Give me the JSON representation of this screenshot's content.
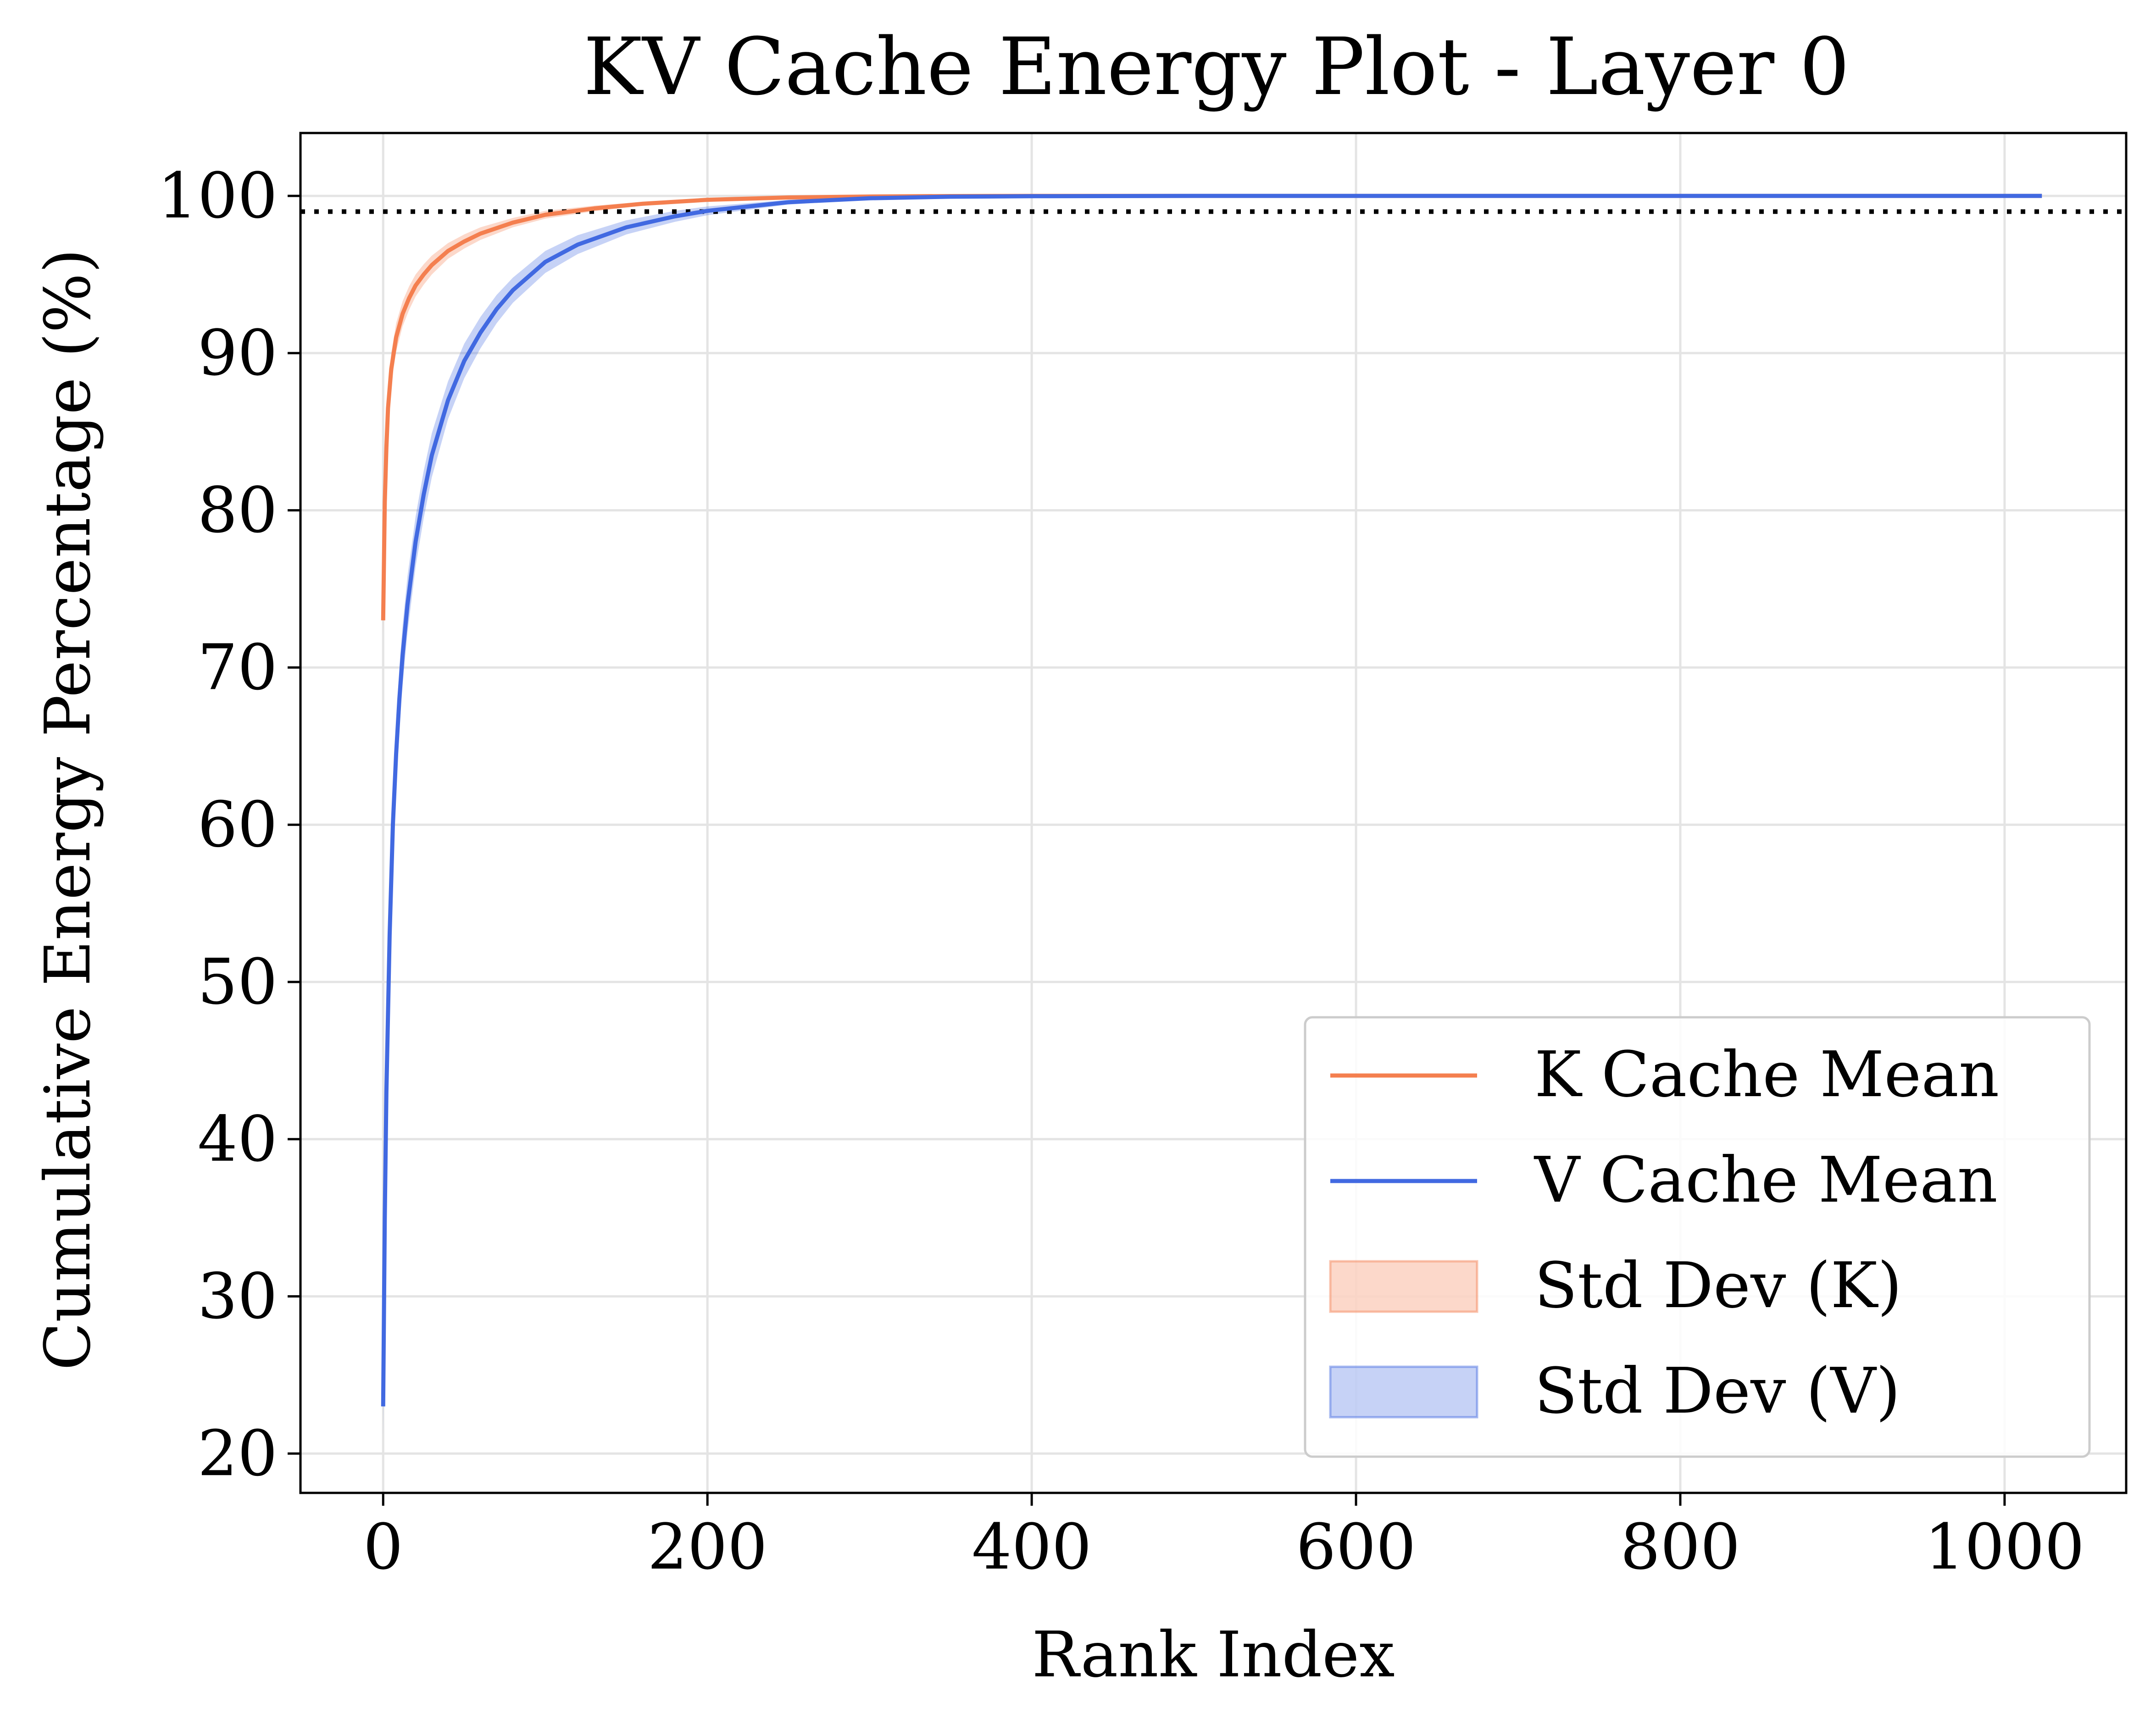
{
  "chart_data": {
    "type": "line",
    "title": "KV Cache Energy Plot - Layer 0",
    "xlabel": "Rank Index",
    "ylabel": "Cumulative Energy Percentage (%)",
    "xlim": [
      -51,
      1075
    ],
    "ylim": [
      17.5,
      104
    ],
    "xticks": [
      0,
      200,
      400,
      600,
      800,
      1000
    ],
    "xtick_labels": [
      "0",
      "200",
      "400",
      "600",
      "800",
      "1000"
    ],
    "yticks": [
      20,
      30,
      40,
      50,
      60,
      70,
      80,
      90,
      100
    ],
    "ytick_labels": [
      "20",
      "30",
      "40",
      "50",
      "60",
      "70",
      "80",
      "90",
      "100"
    ],
    "grid": true,
    "legend_position": "lower-right",
    "threshold": {
      "y": 99,
      "style": "dotted",
      "color": "#000000"
    },
    "series": [
      {
        "name": "K Cache Mean",
        "color": "#f47f4f",
        "x": [
          0,
          1,
          2,
          3,
          5,
          8,
          12,
          16,
          20,
          25,
          30,
          40,
          50,
          60,
          80,
          100,
          130,
          160,
          200,
          250,
          300,
          350,
          400,
          500,
          600,
          800,
          1000,
          1023
        ],
        "y": [
          73.0,
          80.5,
          84.0,
          86.5,
          89.0,
          91.0,
          92.5,
          93.5,
          94.3,
          95.0,
          95.6,
          96.5,
          97.1,
          97.6,
          98.3,
          98.8,
          99.2,
          99.5,
          99.75,
          99.9,
          99.96,
          99.99,
          100,
          100,
          100,
          100,
          100,
          100
        ],
        "std": [
          0.8,
          1.0,
          1.1,
          1.1,
          1.0,
          0.9,
          0.8,
          0.75,
          0.7,
          0.65,
          0.6,
          0.5,
          0.45,
          0.4,
          0.3,
          0.25,
          0.18,
          0.12,
          0.08,
          0.05,
          0.03,
          0.01,
          0,
          0,
          0,
          0,
          0,
          0
        ]
      },
      {
        "name": "V Cache Mean",
        "color": "#4169e1",
        "x": [
          0,
          1,
          2,
          4,
          6,
          8,
          10,
          12,
          15,
          20,
          25,
          30,
          40,
          50,
          60,
          70,
          80,
          100,
          120,
          150,
          180,
          200,
          250,
          300,
          350,
          400,
          500,
          600,
          800,
          1000,
          1023
        ],
        "y": [
          23.0,
          35.0,
          43.0,
          53.0,
          60.0,
          64.5,
          68.0,
          70.8,
          74.0,
          78.0,
          81.0,
          83.5,
          87.0,
          89.5,
          91.3,
          92.8,
          94.0,
          95.8,
          96.9,
          98.0,
          98.7,
          99.05,
          99.6,
          99.85,
          99.95,
          99.98,
          100,
          100,
          100,
          100,
          100
        ],
        "std": [
          1.8,
          2.2,
          2.3,
          2.3,
          2.2,
          2.1,
          2.0,
          1.9,
          1.8,
          1.6,
          1.5,
          1.4,
          1.2,
          1.1,
          1.0,
          0.9,
          0.8,
          0.7,
          0.6,
          0.45,
          0.35,
          0.28,
          0.15,
          0.08,
          0.04,
          0.02,
          0,
          0,
          0,
          0,
          0
        ]
      }
    ],
    "bands": [
      {
        "name": "Std Dev (K)",
        "series": "K Cache Mean",
        "fill": "#f47f4f",
        "opacity": 0.3
      },
      {
        "name": "Std Dev (V)",
        "series": "V Cache Mean",
        "fill": "#4169e1",
        "opacity": 0.3
      }
    ],
    "legend": [
      {
        "label": "K Cache Mean",
        "kind": "line",
        "color": "#f47f4f"
      },
      {
        "label": "V Cache Mean",
        "kind": "line",
        "color": "#4169e1"
      },
      {
        "label": "Std Dev (K)",
        "kind": "patch",
        "color": "#f47f4f"
      },
      {
        "label": "Std Dev (V)",
        "kind": "patch",
        "color": "#4169e1"
      }
    ]
  }
}
